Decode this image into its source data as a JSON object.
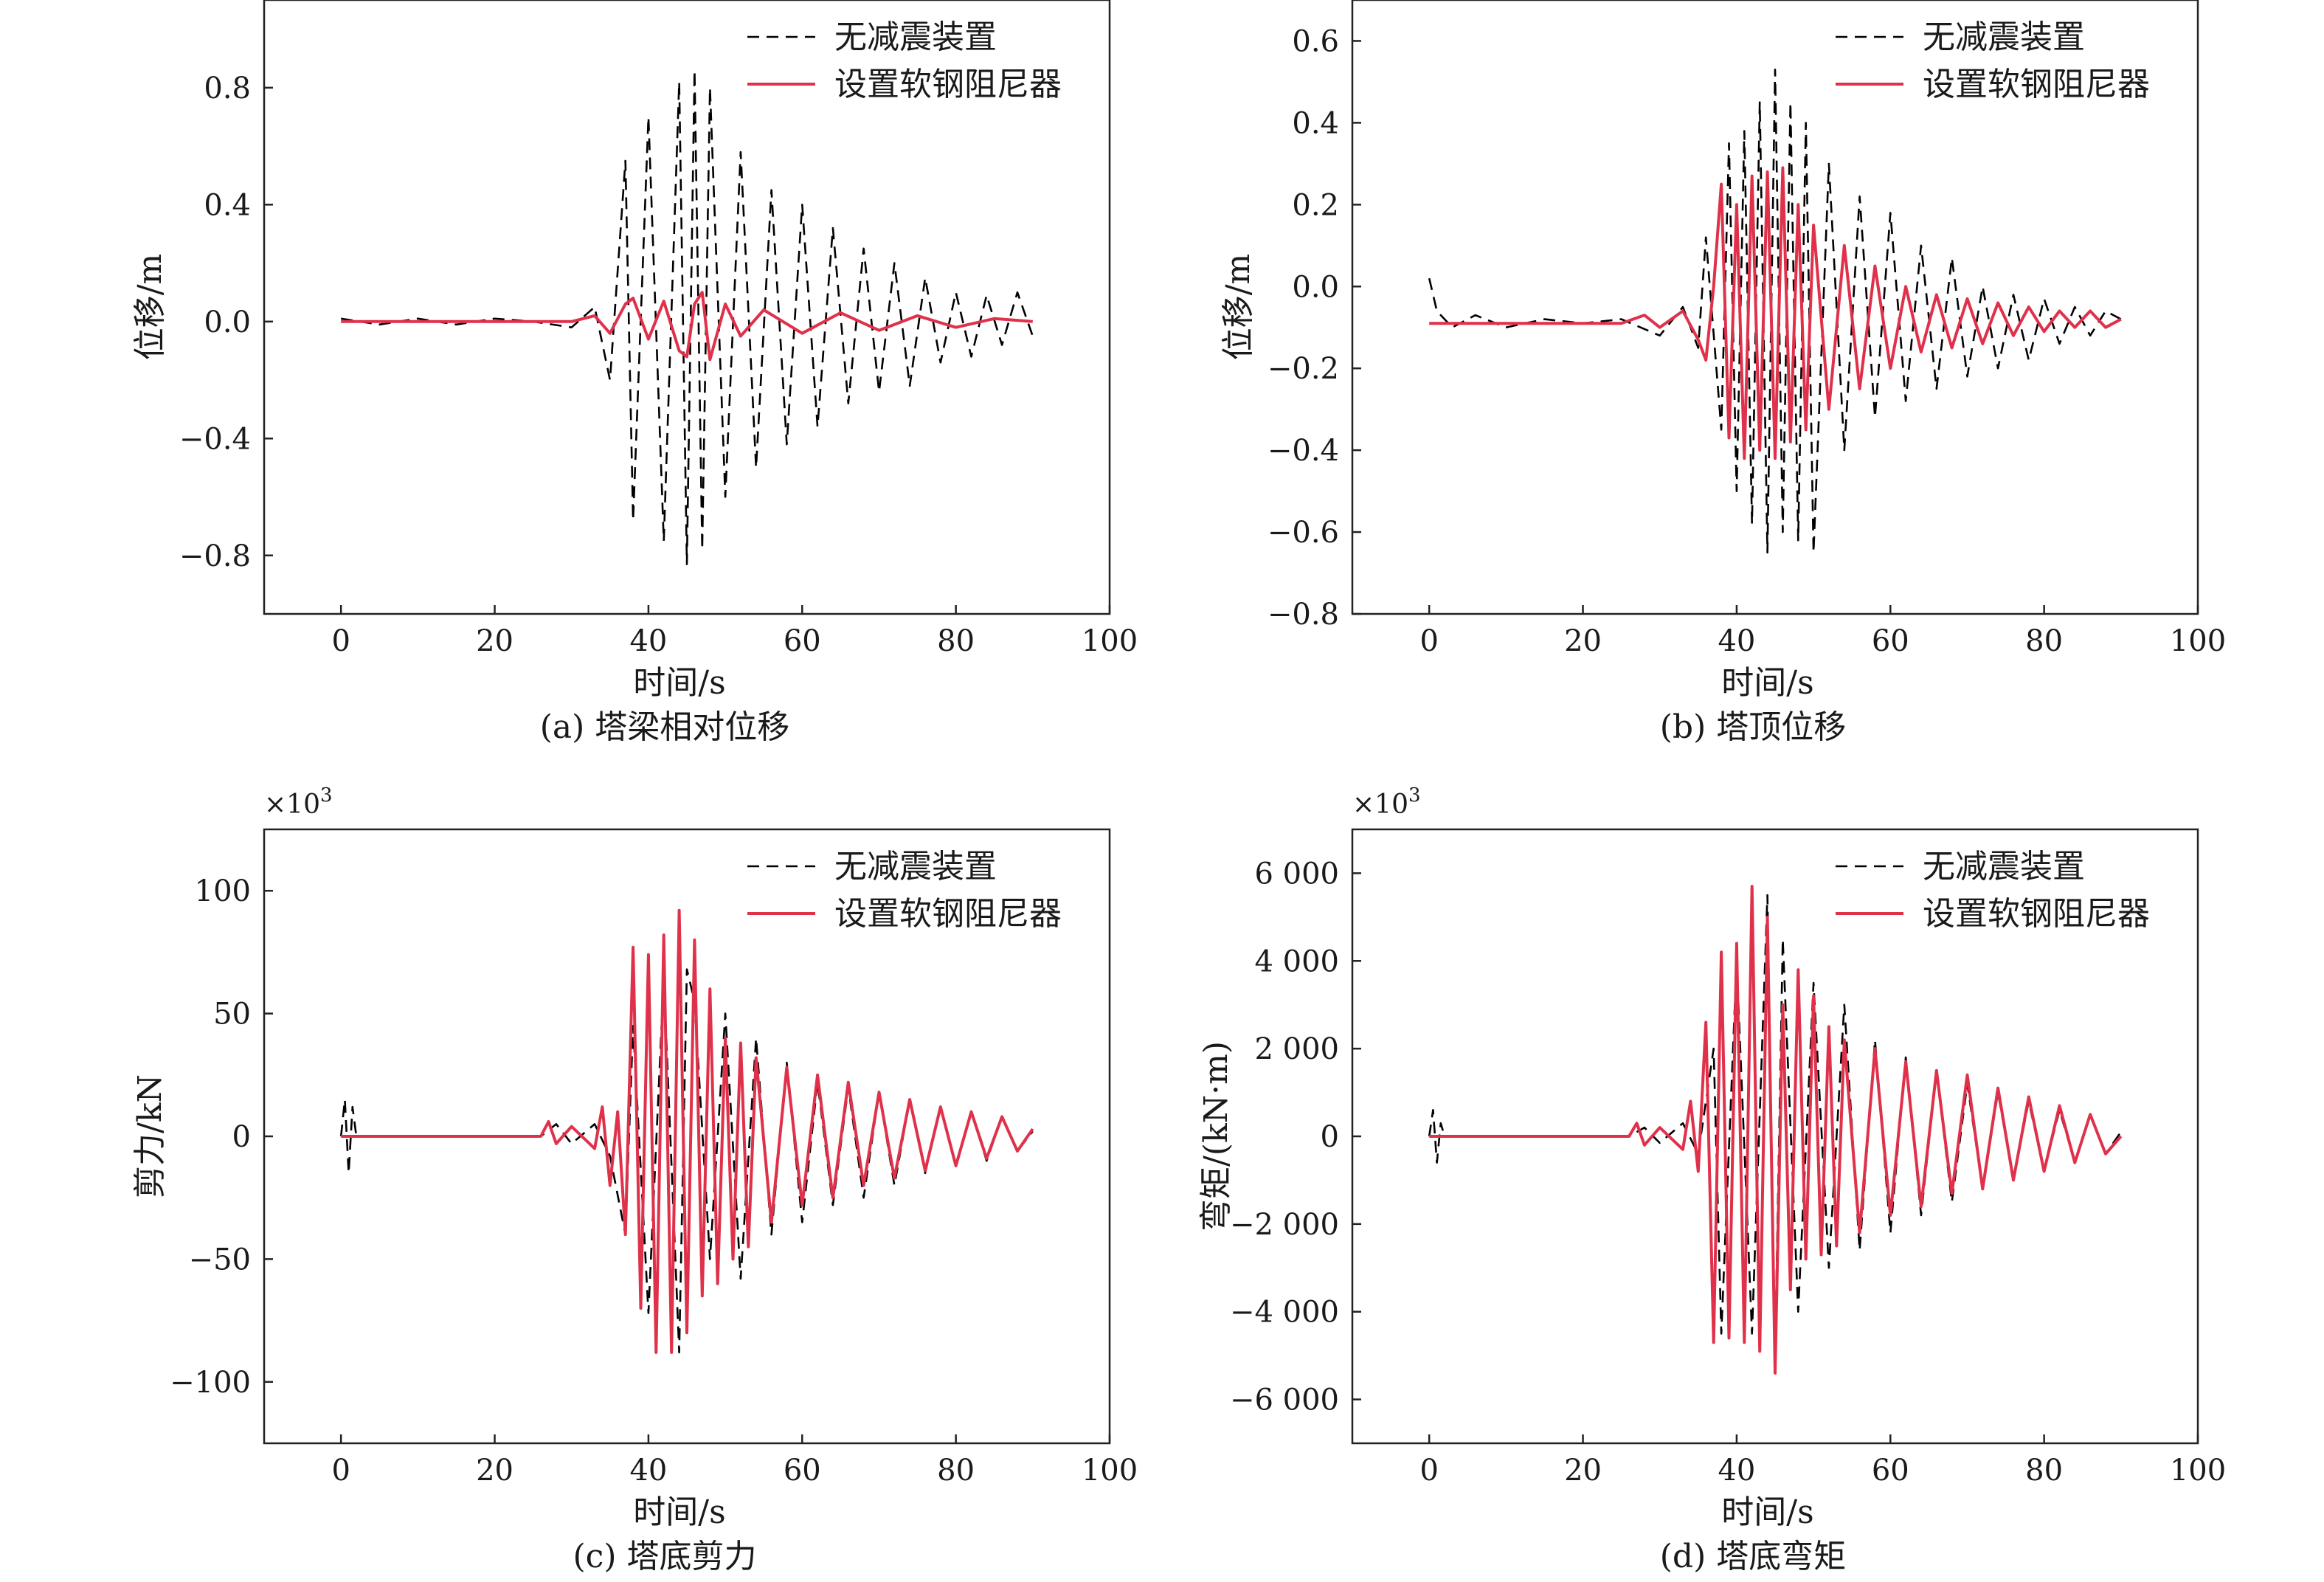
{
  "legend": {
    "undamped": "无减震装置",
    "damped": "设置软钢阻尼器"
  },
  "colors": {
    "undamped": "#000000",
    "damped": "#e0314b"
  },
  "chart_data": [
    {
      "id": "a",
      "type": "line",
      "caption": "(a) 塔梁相对位移",
      "xlabel": "时间/s",
      "ylabel": "位移/m",
      "multiplier": "",
      "xlim": [
        -10,
        100
      ],
      "ylim": [
        -1.0,
        1.1
      ],
      "xticks": [
        0,
        20,
        40,
        60,
        80,
        100
      ],
      "xticklabels": [
        "0",
        "20",
        "40",
        "60",
        "80",
        "100"
      ],
      "yticks": [
        -0.8,
        -0.4,
        0.0,
        0.4,
        0.8
      ],
      "yticklabels": [
        "−0.8",
        "−0.4",
        "0.0",
        "0.4",
        "0.8"
      ],
      "series": [
        {
          "name": "无减震装置",
          "style": "dashed",
          "x": [
            0,
            5,
            10,
            15,
            20,
            25,
            30,
            33,
            35,
            37,
            38,
            40,
            42,
            44,
            45,
            46,
            47,
            48,
            50,
            52,
            54,
            56,
            58,
            60,
            62,
            64,
            66,
            68,
            70,
            72,
            74,
            76,
            78,
            80,
            82,
            84,
            86,
            88,
            90
          ],
          "y": [
            0.01,
            -0.01,
            0.01,
            -0.01,
            0.01,
            0.0,
            -0.02,
            0.05,
            -0.2,
            0.55,
            -0.68,
            0.7,
            -0.75,
            0.82,
            -0.83,
            0.86,
            -0.78,
            0.8,
            -0.6,
            0.58,
            -0.5,
            0.45,
            -0.42,
            0.4,
            -0.36,
            0.32,
            -0.28,
            0.25,
            -0.24,
            0.2,
            -0.22,
            0.15,
            -0.14,
            0.1,
            -0.12,
            0.09,
            -0.08,
            0.1,
            -0.05
          ]
        },
        {
          "name": "设置软钢阻尼器",
          "style": "solid",
          "x": [
            0,
            10,
            20,
            30,
            33,
            35,
            37,
            38,
            40,
            42,
            44,
            45,
            46,
            47,
            48,
            50,
            52,
            55,
            60,
            65,
            70,
            75,
            80,
            85,
            90
          ],
          "y": [
            0.0,
            0.0,
            0.0,
            0.0,
            0.02,
            -0.04,
            0.06,
            0.08,
            -0.06,
            0.07,
            -0.1,
            -0.12,
            0.06,
            0.1,
            -0.13,
            0.06,
            -0.05,
            0.04,
            -0.04,
            0.03,
            -0.03,
            0.02,
            -0.02,
            0.01,
            0.0
          ]
        }
      ]
    },
    {
      "id": "b",
      "type": "line",
      "caption": "(b) 塔顶位移",
      "xlabel": "时间/s",
      "ylabel": "位移/m",
      "multiplier": "",
      "xlim": [
        -10,
        100
      ],
      "ylim": [
        -0.8,
        0.7
      ],
      "xticks": [
        0,
        20,
        40,
        60,
        80,
        100
      ],
      "xticklabels": [
        "0",
        "20",
        "40",
        "60",
        "80",
        "100"
      ],
      "yticks": [
        -0.8,
        -0.6,
        -0.4,
        -0.2,
        0.0,
        0.2,
        0.4,
        0.6
      ],
      "yticklabels": [
        "−0.8",
        "−0.6",
        "−0.4",
        "−0.2",
        "0.0",
        "0.2",
        "0.4",
        "0.6"
      ],
      "series": [
        {
          "name": "无减震装置",
          "style": "dashed",
          "x": [
            0,
            1,
            3,
            6,
            10,
            15,
            20,
            25,
            30,
            33,
            35,
            36,
            38,
            39,
            40,
            41,
            42,
            43,
            44,
            45,
            46,
            47,
            48,
            49,
            50,
            52,
            54,
            56,
            58,
            60,
            62,
            64,
            66,
            68,
            70,
            72,
            74,
            76,
            78,
            80,
            82,
            84,
            86,
            88,
            90
          ],
          "y": [
            0.02,
            -0.06,
            -0.1,
            -0.07,
            -0.1,
            -0.08,
            -0.09,
            -0.08,
            -0.12,
            -0.05,
            -0.15,
            0.12,
            -0.35,
            0.35,
            -0.5,
            0.38,
            -0.58,
            0.45,
            -0.65,
            0.53,
            -0.6,
            0.45,
            -0.62,
            0.4,
            -0.65,
            0.3,
            -0.4,
            0.22,
            -0.32,
            0.18,
            -0.28,
            0.1,
            -0.25,
            0.07,
            -0.22,
            0.0,
            -0.2,
            -0.02,
            -0.18,
            -0.03,
            -0.14,
            -0.05,
            -0.12,
            -0.06,
            -0.08
          ]
        },
        {
          "name": "设置软钢阻尼器",
          "style": "solid",
          "x": [
            0,
            10,
            20,
            25,
            28,
            30,
            33,
            35,
            36,
            37,
            38,
            39,
            40,
            41,
            42,
            43,
            44,
            45,
            46,
            47,
            48,
            49,
            50,
            52,
            54,
            56,
            58,
            60,
            62,
            64,
            66,
            68,
            70,
            72,
            74,
            76,
            78,
            80,
            82,
            84,
            86,
            88,
            90
          ],
          "y": [
            -0.09,
            -0.09,
            -0.09,
            -0.09,
            -0.07,
            -0.1,
            -0.06,
            -0.13,
            -0.18,
            0.0,
            0.25,
            -0.37,
            0.2,
            -0.42,
            0.27,
            -0.4,
            0.28,
            -0.42,
            0.29,
            -0.38,
            0.2,
            -0.35,
            0.15,
            -0.3,
            0.1,
            -0.25,
            0.05,
            -0.2,
            0.0,
            -0.16,
            -0.02,
            -0.15,
            -0.03,
            -0.14,
            -0.04,
            -0.12,
            -0.05,
            -0.11,
            -0.06,
            -0.1,
            -0.06,
            -0.1,
            -0.08
          ]
        }
      ]
    },
    {
      "id": "c",
      "type": "line",
      "caption": "(c) 塔底剪力",
      "xlabel": "时间/s",
      "ylabel": "剪力/kN",
      "multiplier": "×10",
      "multiplier_exp": "3",
      "xlim": [
        -10,
        100
      ],
      "ylim": [
        -125,
        125
      ],
      "xticks": [
        0,
        20,
        40,
        60,
        80,
        100
      ],
      "xticklabels": [
        "0",
        "20",
        "40",
        "60",
        "80",
        "100"
      ],
      "yticks": [
        -100,
        -50,
        0,
        50,
        100
      ],
      "yticklabels": [
        "−100",
        "−50",
        "0",
        "50",
        "100"
      ],
      "series": [
        {
          "name": "无减震装置",
          "style": "dashed",
          "x": [
            0,
            0.5,
            1,
            1.5,
            2,
            5,
            10,
            20,
            26,
            28,
            30,
            33,
            35,
            37,
            38,
            40,
            42,
            44,
            45,
            46,
            48,
            50,
            52,
            54,
            56,
            58,
            60,
            62,
            64,
            66,
            68,
            70,
            72,
            74,
            76,
            78,
            80,
            82,
            84,
            86,
            88,
            90
          ],
          "y": [
            0,
            15,
            -15,
            12,
            0,
            0,
            0,
            0,
            0,
            5,
            -3,
            5,
            -8,
            -40,
            45,
            -72,
            65,
            -88,
            68,
            55,
            -50,
            50,
            -58,
            40,
            -40,
            30,
            -35,
            22,
            -28,
            20,
            -25,
            18,
            -20,
            15,
            -15,
            12,
            -12,
            10,
            -10,
            8,
            -6,
            2
          ]
        },
        {
          "name": "设置软钢阻尼器",
          "style": "solid",
          "x": [
            0,
            5,
            10,
            20,
            26,
            27,
            28,
            30,
            33,
            34,
            35,
            36,
            37,
            38,
            39,
            40,
            41,
            42,
            43,
            44,
            45,
            46,
            47,
            48,
            49,
            50,
            51,
            52,
            53,
            54,
            56,
            58,
            60,
            62,
            64,
            66,
            68,
            70,
            72,
            74,
            76,
            78,
            80,
            82,
            84,
            86,
            88,
            90
          ],
          "y": [
            0,
            0,
            0,
            0,
            0,
            6,
            -3,
            4,
            -5,
            12,
            -20,
            10,
            -40,
            77,
            -70,
            74,
            -88,
            82,
            -88,
            92,
            -80,
            80,
            -65,
            60,
            -60,
            40,
            -50,
            38,
            -45,
            32,
            -35,
            28,
            -28,
            25,
            -25,
            22,
            -20,
            18,
            -17,
            15,
            -14,
            12,
            -12,
            10,
            -9,
            8,
            -6,
            3
          ]
        }
      ]
    },
    {
      "id": "d",
      "type": "line",
      "caption": "(d) 塔底弯矩",
      "xlabel": "时间/s",
      "ylabel": "弯矩/(kN·m)",
      "multiplier": "×10",
      "multiplier_exp": "3",
      "xlim": [
        -10,
        100
      ],
      "ylim": [
        -7000,
        7000
      ],
      "xticks": [
        0,
        20,
        40,
        60,
        80,
        100
      ],
      "xticklabels": [
        "0",
        "20",
        "40",
        "60",
        "80",
        "100"
      ],
      "yticks": [
        -6000,
        -4000,
        -2000,
        0,
        2000,
        4000,
        6000
      ],
      "yticklabels": [
        "−6 000",
        "−4 000",
        "−2 000",
        "0",
        "2 000",
        "4 000",
        "6 000"
      ],
      "series": [
        {
          "name": "无减震装置",
          "style": "dashed",
          "x": [
            0,
            0.5,
            1,
            1.5,
            2,
            5,
            10,
            20,
            26,
            28,
            30,
            33,
            35,
            37,
            38,
            40,
            42,
            44,
            45,
            46,
            48,
            50,
            52,
            54,
            56,
            58,
            60,
            62,
            64,
            66,
            68,
            70,
            72,
            74,
            76,
            78,
            80,
            82,
            84,
            86,
            88,
            90
          ],
          "y": [
            0,
            600,
            -600,
            300,
            0,
            0,
            0,
            0,
            0,
            200,
            -150,
            300,
            -400,
            2000,
            -4500,
            4000,
            -4500,
            5500,
            -5000,
            4500,
            -4000,
            3500,
            -3000,
            3000,
            -2600,
            2200,
            -2200,
            1800,
            -1800,
            1500,
            -1500,
            1200,
            -1200,
            1000,
            -1000,
            800,
            -800,
            600,
            -600,
            500,
            -400,
            100
          ]
        },
        {
          "name": "设置软钢阻尼器",
          "style": "solid",
          "x": [
            0,
            5,
            10,
            20,
            26,
            27,
            28,
            30,
            33,
            34,
            35,
            36,
            37,
            38,
            39,
            40,
            41,
            42,
            43,
            44,
            45,
            46,
            47,
            48,
            49,
            50,
            51,
            52,
            53,
            54,
            56,
            58,
            60,
            62,
            64,
            66,
            68,
            70,
            72,
            74,
            76,
            78,
            80,
            82,
            84,
            86,
            88,
            90
          ],
          "y": [
            0,
            0,
            0,
            0,
            0,
            300,
            -200,
            200,
            -300,
            800,
            -800,
            2600,
            -4700,
            4200,
            -4600,
            4400,
            -4700,
            5700,
            -4900,
            5000,
            -5400,
            3000,
            -3500,
            3800,
            -2800,
            3200,
            -2700,
            2500,
            -2500,
            2200,
            -2200,
            2000,
            -1800,
            1700,
            -1600,
            1500,
            -1300,
            1400,
            -1200,
            1100,
            -1000,
            900,
            -800,
            700,
            -600,
            500,
            -400,
            0
          ]
        }
      ]
    }
  ]
}
